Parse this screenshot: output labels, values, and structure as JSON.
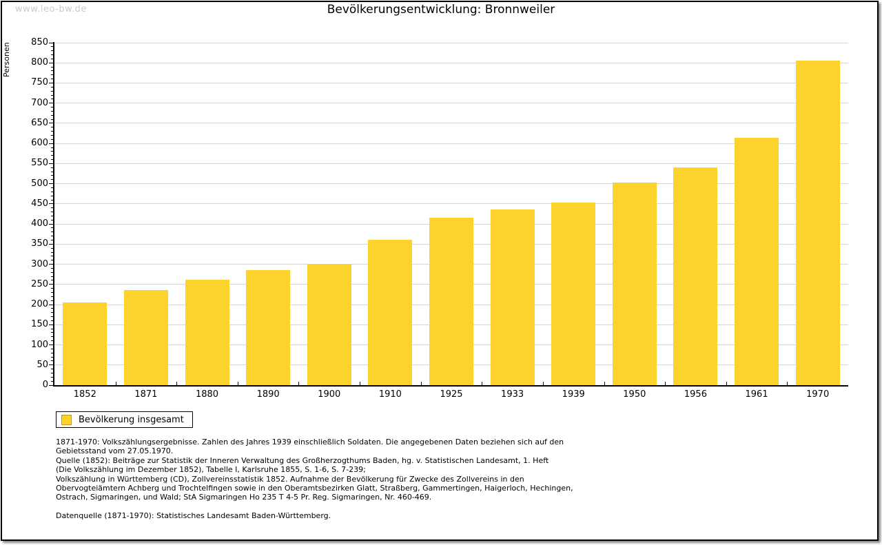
{
  "watermark": "www.leo-bw.de",
  "title": "Bevölkerungsentwicklung: Bronnweiler",
  "chart_data": {
    "type": "bar",
    "title": "Bevölkerungsentwicklung: Bronnweiler",
    "categories": [
      "1852",
      "1871",
      "1880",
      "1890",
      "1900",
      "1910",
      "1925",
      "1933",
      "1939",
      "1950",
      "1956",
      "1961",
      "1970"
    ],
    "series": [
      {
        "name": "Bevölkerung insgesamt",
        "values": [
          205,
          236,
          261,
          285,
          301,
          361,
          416,
          436,
          453,
          503,
          540,
          614,
          805
        ]
      }
    ],
    "xlabel": "",
    "ylabel": "Personen",
    "ylim": [
      0,
      850
    ],
    "ytick_step": 50,
    "y_minor_tick_step": 10,
    "grid": true,
    "legend_position": "bottom-left"
  },
  "legend": {
    "items": [
      {
        "label": "Bevölkerung insgesamt",
        "color": "#FCD22D"
      }
    ]
  },
  "footnotes": {
    "lines": [
      "1871-1970: Volkszählungsergebnisse. Zahlen des Jahres 1939 einschließlich Soldaten. Die angegebenen Daten beziehen sich auf den",
      "Gebietsstand vom 27.05.1970.",
      "Quelle (1852): Beiträge zur Statistik der Inneren Verwaltung des Großherzogthums Baden, hg. v. Statistischen Landesamt, 1. Heft",
      "(Die Volkszählung im Dezember 1852), Tabelle I, Karlsruhe 1855, S. 1-6, S. 7-239;",
      "Volkszählung in Württemberg (CD), Zollvereinsstatistik 1852. Aufnahme der Bevölkerung für Zwecke des Zollvereins in den",
      "Obervogteiämtern Achberg und Trochtelfingen sowie in den Oberamtsbezirken Glatt, Straßberg, Gammertingen, Haigerloch, Hechingen,",
      "Ostrach, Sigmaringen, und Wald; StA Sigmaringen Ho 235 T 4-5 Pr. Reg. Sigmaringen, Nr. 460-469."
    ],
    "datasource": "Datenquelle (1871-1970): Statistisches Landesamt Baden-Württemberg."
  },
  "colors": {
    "bar": "#FCD22D",
    "swatch_border": "#C79810",
    "grid": "#D6D6D6",
    "axis": "#000000",
    "watermark": "#CBCBCB",
    "text": "#000000"
  }
}
